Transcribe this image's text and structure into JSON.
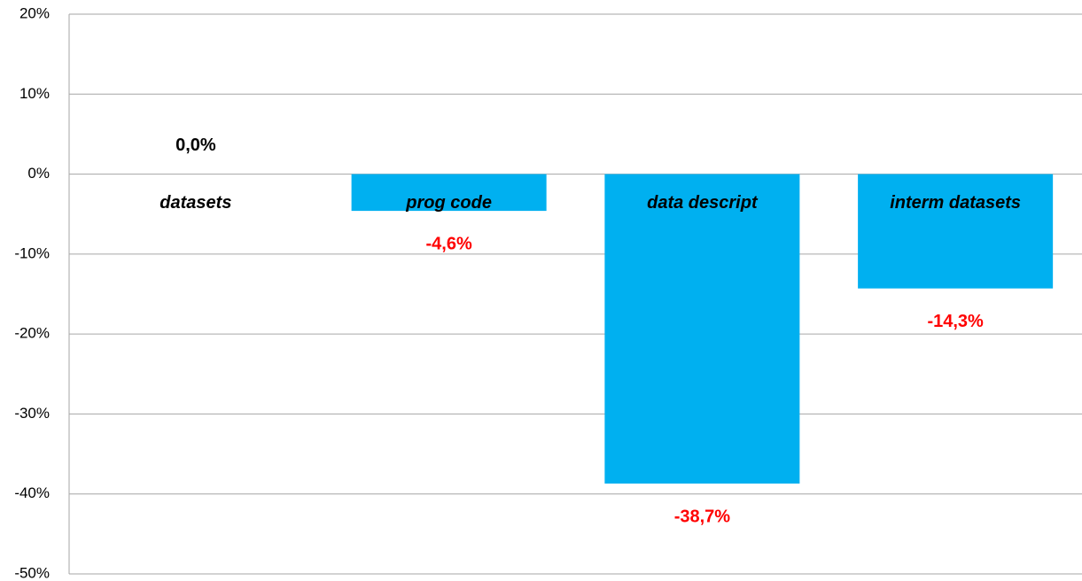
{
  "chart_data": {
    "type": "bar",
    "categories": [
      "datasets",
      "prog code",
      "data descript",
      "interm datasets"
    ],
    "values": [
      0.0,
      -4.6,
      -38.7,
      -14.3
    ],
    "value_labels": [
      "0,0%",
      "-4,6%",
      "-38,7%",
      "-14,3%"
    ],
    "value_label_colors": [
      "#000000",
      "#ff0000",
      "#ff0000",
      "#ff0000"
    ],
    "color": "#00b0f0",
    "ylim": [
      -50,
      20
    ],
    "yticks": [
      {
        "value": -50,
        "label": "-50%"
      },
      {
        "value": -40,
        "label": "-40%"
      },
      {
        "value": -30,
        "label": "-30%"
      },
      {
        "value": -20,
        "label": "-20%"
      },
      {
        "value": -10,
        "label": "-10%"
      },
      {
        "value": 0,
        "label": "0%"
      },
      {
        "value": 10,
        "label": "10%"
      },
      {
        "value": 20,
        "label": "20%"
      }
    ],
    "grid": true
  }
}
